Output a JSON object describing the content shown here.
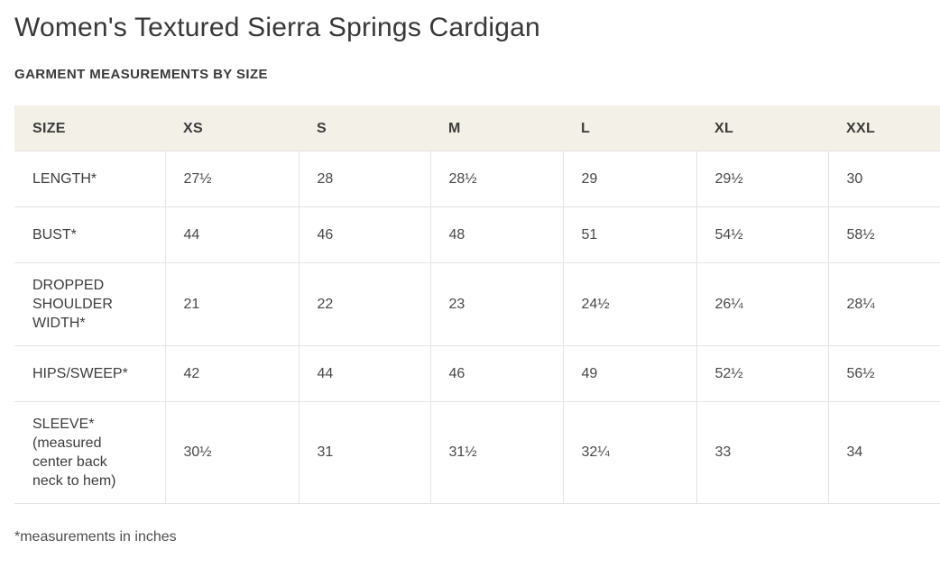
{
  "page": {
    "title": "Women's Textured Sierra Springs Cardigan",
    "section_heading": "GARMENT MEASUREMENTS BY SIZE",
    "footnote": "*measurements in inches"
  },
  "colors": {
    "page_bg": "#ffffff",
    "header_bg": "#f3f0e7",
    "border": "#e3e3e3",
    "title_text": "#383838",
    "body_text": "#424242",
    "footnote_text": "#4e4e4e"
  },
  "chart_data": {
    "type": "table",
    "title": "Garment measurements by size",
    "unit": "inches",
    "columns": [
      "SIZE",
      "XS",
      "S",
      "M",
      "L",
      "XL",
      "XXL"
    ],
    "rows": [
      {
        "label": "LENGTH*",
        "values": [
          "27½",
          "28",
          "28½",
          "29",
          "29½",
          "30"
        ]
      },
      {
        "label": "BUST*",
        "values": [
          "44",
          "46",
          "48",
          "51",
          "54½",
          "58½"
        ]
      },
      {
        "label": "DROPPED SHOULDER WIDTH*",
        "values": [
          "21",
          "22",
          "23",
          "24½",
          "26¼",
          "28¼"
        ]
      },
      {
        "label": "HIPS/SWEEP*",
        "values": [
          "42",
          "44",
          "46",
          "49",
          "52½",
          "56½"
        ]
      },
      {
        "label": "SLEEVE* (measured center back neck to hem)",
        "values": [
          "30½",
          "31",
          "31½",
          "32¼",
          "33",
          "34"
        ]
      }
    ]
  }
}
